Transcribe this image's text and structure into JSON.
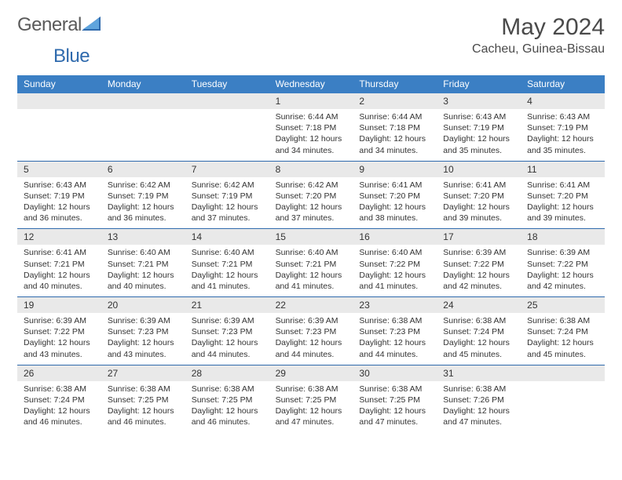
{
  "brand": {
    "name": "General",
    "sub": "Blue"
  },
  "title": "May 2024",
  "location": "Cacheu, Guinea-Bissau",
  "colors": {
    "header_bg": "#3b7fc4",
    "header_text": "#ffffff",
    "daynum_bg": "#e9e9e9",
    "text": "#333333",
    "week_divider": "#2f6aad",
    "brand_gray": "#5a5a5a",
    "brand_blue": "#2f6aad"
  },
  "weekdays": [
    "Sunday",
    "Monday",
    "Tuesday",
    "Wednesday",
    "Thursday",
    "Friday",
    "Saturday"
  ],
  "first_weekday_index": 3,
  "days": [
    {
      "n": 1,
      "sunrise": "6:44 AM",
      "sunset": "7:18 PM",
      "daylight": "12 hours and 34 minutes."
    },
    {
      "n": 2,
      "sunrise": "6:44 AM",
      "sunset": "7:18 PM",
      "daylight": "12 hours and 34 minutes."
    },
    {
      "n": 3,
      "sunrise": "6:43 AM",
      "sunset": "7:19 PM",
      "daylight": "12 hours and 35 minutes."
    },
    {
      "n": 4,
      "sunrise": "6:43 AM",
      "sunset": "7:19 PM",
      "daylight": "12 hours and 35 minutes."
    },
    {
      "n": 5,
      "sunrise": "6:43 AM",
      "sunset": "7:19 PM",
      "daylight": "12 hours and 36 minutes."
    },
    {
      "n": 6,
      "sunrise": "6:42 AM",
      "sunset": "7:19 PM",
      "daylight": "12 hours and 36 minutes."
    },
    {
      "n": 7,
      "sunrise": "6:42 AM",
      "sunset": "7:19 PM",
      "daylight": "12 hours and 37 minutes."
    },
    {
      "n": 8,
      "sunrise": "6:42 AM",
      "sunset": "7:20 PM",
      "daylight": "12 hours and 37 minutes."
    },
    {
      "n": 9,
      "sunrise": "6:41 AM",
      "sunset": "7:20 PM",
      "daylight": "12 hours and 38 minutes."
    },
    {
      "n": 10,
      "sunrise": "6:41 AM",
      "sunset": "7:20 PM",
      "daylight": "12 hours and 39 minutes."
    },
    {
      "n": 11,
      "sunrise": "6:41 AM",
      "sunset": "7:20 PM",
      "daylight": "12 hours and 39 minutes."
    },
    {
      "n": 12,
      "sunrise": "6:41 AM",
      "sunset": "7:21 PM",
      "daylight": "12 hours and 40 minutes."
    },
    {
      "n": 13,
      "sunrise": "6:40 AM",
      "sunset": "7:21 PM",
      "daylight": "12 hours and 40 minutes."
    },
    {
      "n": 14,
      "sunrise": "6:40 AM",
      "sunset": "7:21 PM",
      "daylight": "12 hours and 41 minutes."
    },
    {
      "n": 15,
      "sunrise": "6:40 AM",
      "sunset": "7:21 PM",
      "daylight": "12 hours and 41 minutes."
    },
    {
      "n": 16,
      "sunrise": "6:40 AM",
      "sunset": "7:22 PM",
      "daylight": "12 hours and 41 minutes."
    },
    {
      "n": 17,
      "sunrise": "6:39 AM",
      "sunset": "7:22 PM",
      "daylight": "12 hours and 42 minutes."
    },
    {
      "n": 18,
      "sunrise": "6:39 AM",
      "sunset": "7:22 PM",
      "daylight": "12 hours and 42 minutes."
    },
    {
      "n": 19,
      "sunrise": "6:39 AM",
      "sunset": "7:22 PM",
      "daylight": "12 hours and 43 minutes."
    },
    {
      "n": 20,
      "sunrise": "6:39 AM",
      "sunset": "7:23 PM",
      "daylight": "12 hours and 43 minutes."
    },
    {
      "n": 21,
      "sunrise": "6:39 AM",
      "sunset": "7:23 PM",
      "daylight": "12 hours and 44 minutes."
    },
    {
      "n": 22,
      "sunrise": "6:39 AM",
      "sunset": "7:23 PM",
      "daylight": "12 hours and 44 minutes."
    },
    {
      "n": 23,
      "sunrise": "6:38 AM",
      "sunset": "7:23 PM",
      "daylight": "12 hours and 44 minutes."
    },
    {
      "n": 24,
      "sunrise": "6:38 AM",
      "sunset": "7:24 PM",
      "daylight": "12 hours and 45 minutes."
    },
    {
      "n": 25,
      "sunrise": "6:38 AM",
      "sunset": "7:24 PM",
      "daylight": "12 hours and 45 minutes."
    },
    {
      "n": 26,
      "sunrise": "6:38 AM",
      "sunset": "7:24 PM",
      "daylight": "12 hours and 46 minutes."
    },
    {
      "n": 27,
      "sunrise": "6:38 AM",
      "sunset": "7:25 PM",
      "daylight": "12 hours and 46 minutes."
    },
    {
      "n": 28,
      "sunrise": "6:38 AM",
      "sunset": "7:25 PM",
      "daylight": "12 hours and 46 minutes."
    },
    {
      "n": 29,
      "sunrise": "6:38 AM",
      "sunset": "7:25 PM",
      "daylight": "12 hours and 47 minutes."
    },
    {
      "n": 30,
      "sunrise": "6:38 AM",
      "sunset": "7:25 PM",
      "daylight": "12 hours and 47 minutes."
    },
    {
      "n": 31,
      "sunrise": "6:38 AM",
      "sunset": "7:26 PM",
      "daylight": "12 hours and 47 minutes."
    }
  ],
  "labels": {
    "sunrise": "Sunrise:",
    "sunset": "Sunset:",
    "daylight": "Daylight:"
  }
}
